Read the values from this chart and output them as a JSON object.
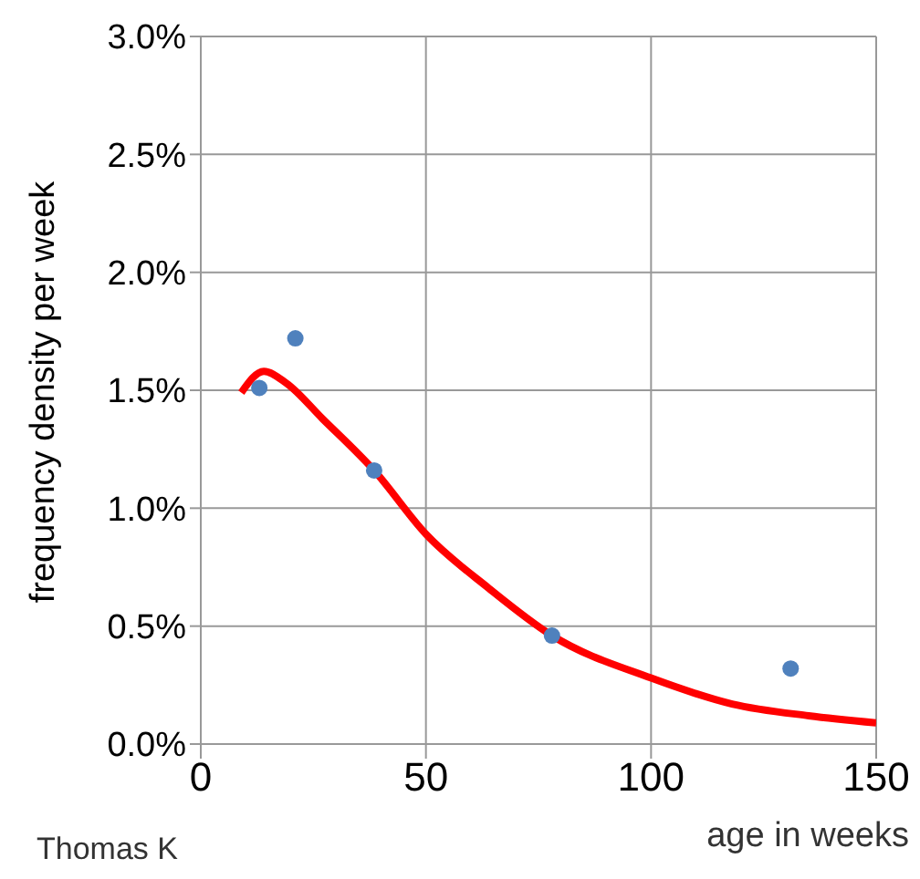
{
  "chart_data": {
    "type": "scatter",
    "xlabel": "age in weeks",
    "ylabel": "frequency density per week",
    "annotations": [
      "Thomas K"
    ],
    "series": [
      {
        "marker": "circle",
        "color": "#4f81bd",
        "x": [
          13,
          21,
          38.5,
          78,
          131
        ],
        "values": [
          1.51,
          1.72,
          1.16,
          0.46,
          0.32
        ]
      },
      {
        "type": "line",
        "marker": "none",
        "line_style": "solid",
        "color": "#ff0000",
        "x": [
          9,
          14,
          19,
          27,
          38.5,
          50,
          64,
          78,
          100,
          118,
          135,
          150
        ],
        "values": [
          1.49,
          1.58,
          1.53,
          1.38,
          1.16,
          0.89,
          0.66,
          0.46,
          0.28,
          0.17,
          0.12,
          0.09
        ]
      }
    ],
    "xlim": [
      0,
      150
    ],
    "xticks": [
      0,
      50,
      100,
      150
    ],
    "ylim": [
      0,
      3
    ],
    "yticks": [
      {
        "value": 0,
        "label": "0.0%"
      },
      {
        "value": 0.5,
        "label": "0.5%"
      },
      {
        "value": 1,
        "label": "1.0%"
      },
      {
        "value": 1.5,
        "label": "1.5%"
      },
      {
        "value": 2,
        "label": "2.0%"
      },
      {
        "value": 2.5,
        "label": "2.5%"
      },
      {
        "value": 3,
        "label": "3.0%"
      }
    ],
    "grid": true
  }
}
